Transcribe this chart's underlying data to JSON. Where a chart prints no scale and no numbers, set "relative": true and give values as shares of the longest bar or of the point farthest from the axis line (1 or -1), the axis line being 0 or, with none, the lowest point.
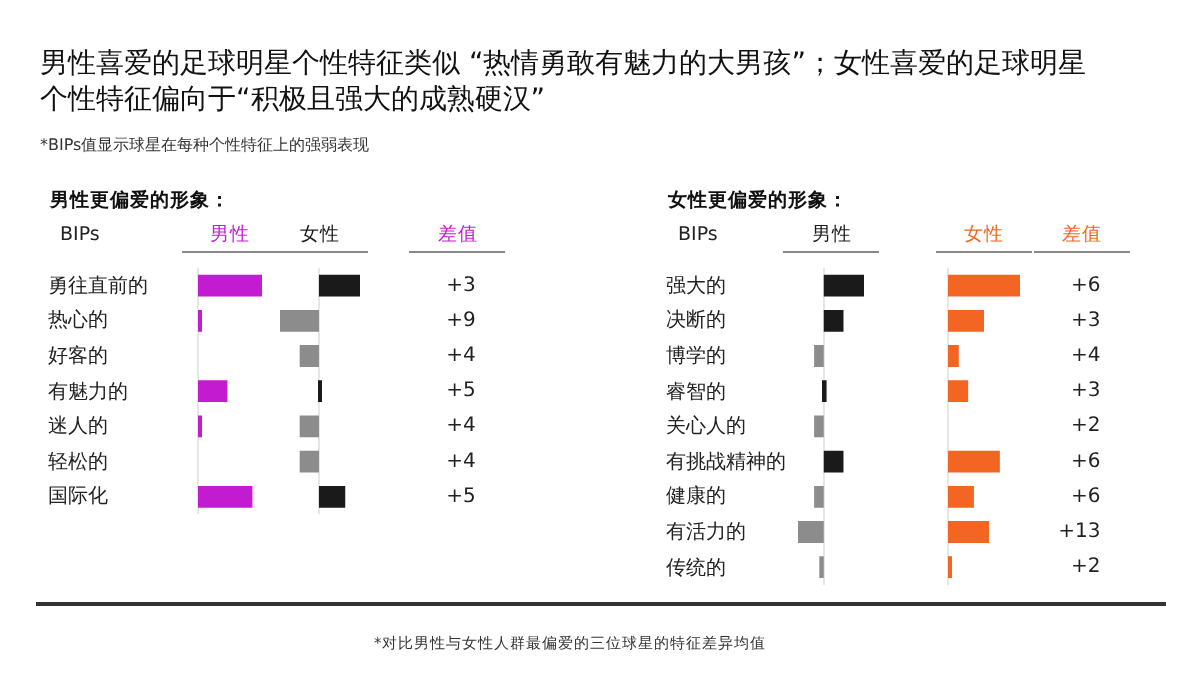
{
  "chart_data": [
    {
      "type": "bar",
      "orientation": "horizontal",
      "relative": true,
      "tick_labels": "y",
      "title": "男性喜爱的足球明星个性特征类似 “热情勇敢有魅力的大男孩”；女性喜爱的足球明星个性特征偏向于“积极且强大的成熟硬汉”",
      "subtitle": "*BIPs值显示球星在每种个性特征上的强弱表现",
      "annotations": [
        "男性更偏爱的形象：",
        "*对比男性与女性人群最偏爱的三位球星的特征差异均值"
      ],
      "ylabel": "BIPs",
      "xlabel": "男性",
      "categories": [
        "勇往直前的",
        "热心的",
        "好客的",
        "有魅力的",
        "迷人的",
        "轻松的",
        "国际化"
      ],
      "values": [
        1,
        0.05,
        null,
        0.46,
        0.05,
        null,
        0.85
      ],
      "colors": [
        "#c21bd0",
        "#c21bd0",
        "#c21bd0",
        "#c21bd0",
        "#c21bd0",
        "#c21bd0",
        "#c21bd0"
      ]
    },
    {
      "type": "bar",
      "orientation": "horizontal",
      "relative": true,
      "tick_labels": false,
      "xlabel": "女性",
      "categories": [
        "勇往直前的",
        "热心的",
        "好客的",
        "有魅力的",
        "迷人的",
        "轻松的",
        "国际化"
      ],
      "values": [
        1,
        -0.95,
        -0.47,
        0.05,
        -0.47,
        -0.47,
        0.64
      ],
      "colors": [
        "#1a1a1a",
        "#8c8c8c",
        "#8c8c8c",
        "#1a1a1a",
        "#8c8c8c",
        "#8c8c8c",
        "#1a1a1a"
      ]
    },
    {
      "type": "other",
      "xlabel": "差值",
      "color": "#c21bd0",
      "values": [
        3,
        9,
        4,
        5,
        4,
        4,
        5
      ],
      "value_labels": [
        "+3",
        "+9",
        "+4",
        "+5",
        "+4",
        "+4",
        "+5"
      ]
    },
    {
      "type": "bar",
      "orientation": "horizontal",
      "relative": true,
      "tick_labels": "y",
      "annotations": [
        "女性更偏爱的形象："
      ],
      "ylabel": "BIPs",
      "xlabel": "男性",
      "categories": [
        "强大的",
        "决断的",
        "博学的",
        "睿智的",
        "关心人的",
        "有挑战精神的",
        "健康的",
        "有活力的",
        "传统的"
      ],
      "values": [
        1,
        0.49,
        -0.24,
        0.07,
        -0.24,
        0.49,
        -0.24,
        -0.64,
        -0.11
      ],
      "colors": [
        "#1a1a1a",
        "#1a1a1a",
        "#8c8c8c",
        "#1a1a1a",
        "#8c8c8c",
        "#1a1a1a",
        "#8c8c8c",
        "#8c8c8c",
        "#8c8c8c"
      ]
    },
    {
      "type": "bar",
      "orientation": "horizontal",
      "relative": true,
      "tick_labels": false,
      "xlabel": "女性",
      "categories": [
        "强大的",
        "决断的",
        "博学的",
        "睿智的",
        "关心人的",
        "有挑战精神的",
        "健康的",
        "有活力的",
        "传统的"
      ],
      "values": [
        1,
        0.5,
        0.15,
        0.28,
        null,
        0.72,
        0.36,
        0.57,
        0.05
      ],
      "colors": [
        "#f26522",
        "#f26522",
        "#f26522",
        "#f26522",
        "#f26522",
        "#f26522",
        "#f26522",
        "#f26522",
        "#f26522"
      ]
    },
    {
      "type": "other",
      "xlabel": "差值",
      "color": "#f26522",
      "values": [
        6,
        3,
        4,
        3,
        2,
        6,
        6,
        13,
        2
      ],
      "value_labels": [
        "+6",
        "+3",
        "+4",
        "+3",
        "+2",
        "+6",
        "+6",
        "+13",
        "+2"
      ]
    }
  ]
}
